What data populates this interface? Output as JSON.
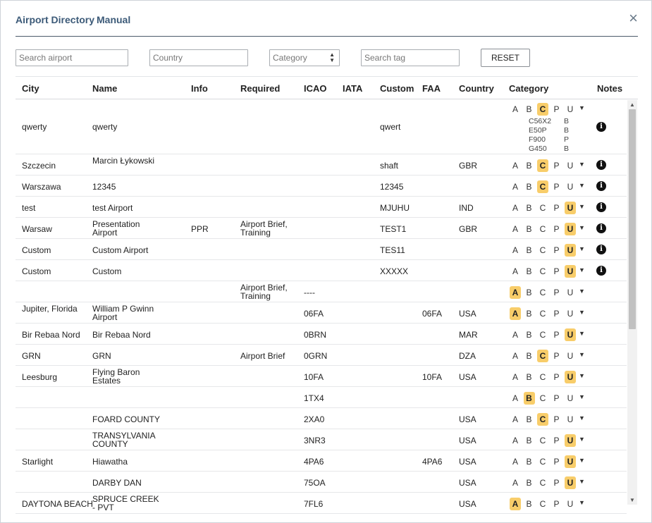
{
  "window": {
    "title": "Airport Directory",
    "subtitle": "Manual",
    "close_icon": "×"
  },
  "filters": {
    "search_airport_placeholder": "Search airport",
    "country_placeholder": "Country",
    "category_placeholder": "Category",
    "search_tag_placeholder": "Search tag",
    "reset_label": "RESET"
  },
  "columns": {
    "city": "City",
    "name": "Name",
    "info": "Info",
    "required": "Required",
    "icao": "ICAO",
    "iata": "IATA",
    "custom": "Custom",
    "faa": "FAA",
    "country": "Country",
    "category": "Category",
    "notes": "Notes"
  },
  "category_letters": [
    "A",
    "B",
    "C",
    "P",
    "U"
  ],
  "category_highlight_color": "#f8cd6a",
  "rows": [
    {
      "city": "qwerty",
      "name": "qwerty",
      "info": "",
      "required": "",
      "icao": "",
      "iata": "",
      "custom": "qwert",
      "faa": "",
      "country": "",
      "category": "C",
      "notes": "info-icon",
      "aircraft": [
        "C56X2",
        "E50P",
        "F900",
        "G450"
      ],
      "aircraft_cat": [
        "B",
        "B",
        "P",
        "B"
      ]
    },
    {
      "city": "Szczecin",
      "name": "Marcin Łykowski",
      "info": "",
      "required": "",
      "icao": "",
      "iata": "",
      "custom": "shaft",
      "faa": "",
      "country": "GBR",
      "category": "C",
      "notes": "info-icon"
    },
    {
      "city": "Warszawa",
      "name": "12345",
      "info": "",
      "required": "",
      "icao": "",
      "iata": "",
      "custom": "12345",
      "faa": "",
      "country": "",
      "category": "C",
      "notes": "info-icon"
    },
    {
      "city": "test",
      "name": "test Airport",
      "info": "",
      "required": "",
      "icao": "",
      "iata": "",
      "custom": "MJUHU",
      "faa": "",
      "country": "IND",
      "category": "U",
      "notes": "info-icon"
    },
    {
      "city": "Warsaw",
      "name": "Presentation Airport",
      "info": "PPR",
      "required": "Airport Brief, Training",
      "icao": "",
      "iata": "",
      "custom": "TEST1",
      "faa": "",
      "country": "GBR",
      "category": "U",
      "notes": "info-icon"
    },
    {
      "city": "Custom",
      "name": "Custom Airport",
      "info": "",
      "required": "",
      "icao": "",
      "iata": "",
      "custom": "TES11",
      "faa": "",
      "country": "",
      "category": "U",
      "notes": "info-icon"
    },
    {
      "city": "Custom",
      "name": "Custom",
      "info": "",
      "required": "",
      "icao": "",
      "iata": "",
      "custom": "XXXXX",
      "faa": "",
      "country": "",
      "category": "U",
      "notes": "info-icon"
    },
    {
      "city": "",
      "name": "",
      "info": "",
      "required": "Airport Brief, Training",
      "icao": "----",
      "iata": "",
      "custom": "",
      "faa": "",
      "country": "",
      "category": "A",
      "notes": ""
    },
    {
      "city": "Jupiter, Florida",
      "name": "William P Gwinn Airport",
      "info": "",
      "required": "",
      "icao": "06FA",
      "iata": "",
      "custom": "",
      "faa": "06FA",
      "country": "USA",
      "category": "A",
      "notes": ""
    },
    {
      "city": "Bir Rebaa Nord",
      "name": "Bir Rebaa Nord",
      "info": "",
      "required": "",
      "icao": "0BRN",
      "iata": "",
      "custom": "",
      "faa": "",
      "country": "MAR",
      "category": "U",
      "notes": ""
    },
    {
      "city": "GRN",
      "name": "GRN",
      "info": "",
      "required": "Airport Brief",
      "icao": "0GRN",
      "iata": "",
      "custom": "",
      "faa": "",
      "country": "DZA",
      "category": "C",
      "notes": ""
    },
    {
      "city": "Leesburg",
      "name": "Flying Baron Estates",
      "info": "",
      "required": "",
      "icao": "10FA",
      "iata": "",
      "custom": "",
      "faa": "10FA",
      "country": "USA",
      "category": "U",
      "notes": ""
    },
    {
      "city": "",
      "name": "",
      "info": "",
      "required": "",
      "icao": "1TX4",
      "iata": "",
      "custom": "",
      "faa": "",
      "country": "",
      "category": "B",
      "notes": ""
    },
    {
      "city": "",
      "name": "FOARD COUNTY",
      "info": "",
      "required": "",
      "icao": "2XA0",
      "iata": "",
      "custom": "",
      "faa": "",
      "country": "USA",
      "category": "C",
      "notes": ""
    },
    {
      "city": "",
      "name": "TRANSYLVANIA COUNTY",
      "info": "",
      "required": "",
      "icao": "3NR3",
      "iata": "",
      "custom": "",
      "faa": "",
      "country": "USA",
      "category": "U",
      "notes": ""
    },
    {
      "city": "Starlight",
      "name": "Hiawatha",
      "info": "",
      "required": "",
      "icao": "4PA6",
      "iata": "",
      "custom": "",
      "faa": "4PA6",
      "country": "USA",
      "category": "U",
      "notes": ""
    },
    {
      "city": "",
      "name": "DARBY DAN",
      "info": "",
      "required": "",
      "icao": "75OA",
      "iata": "",
      "custom": "",
      "faa": "",
      "country": "USA",
      "category": "U",
      "notes": ""
    },
    {
      "city": "DAYTONA BEACH",
      "name": "SPRUCE CREEK - PVT",
      "info": "",
      "required": "",
      "icao": "7FL6",
      "iata": "",
      "custom": "",
      "faa": "",
      "country": "USA",
      "category": "A",
      "notes": ""
    }
  ]
}
